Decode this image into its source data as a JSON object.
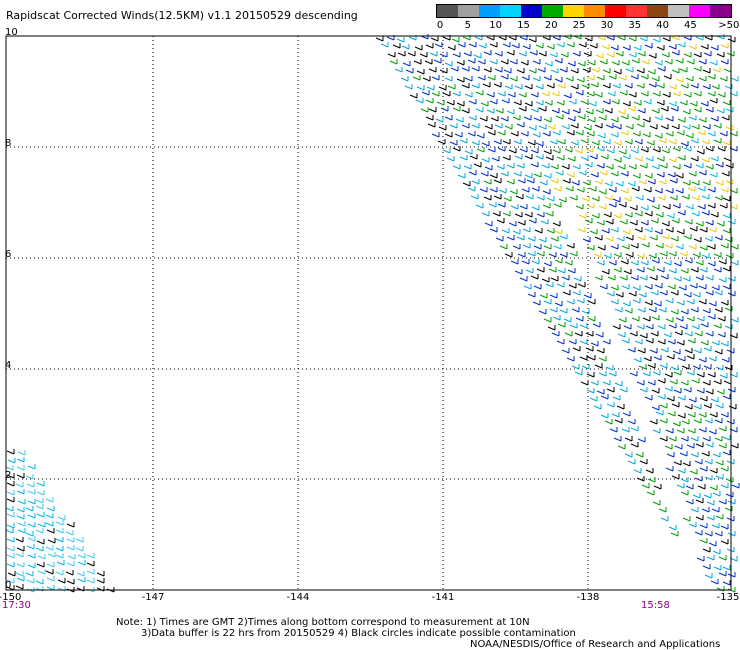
{
  "title": "Rapidscat Corrected Winds(12.5KM) v1.1 20150529 descending",
  "legend": {
    "labels": [
      "0",
      "5",
      "10",
      "15",
      "20",
      "25",
      "30",
      "35",
      "40",
      "45",
      ">50 knots"
    ],
    "colors": [
      "#555555",
      "#a0a0a0",
      "#00a0ff",
      "#00d4ff",
      "#0000cc",
      "#00aa00",
      "#ffd700",
      "#ff8c00",
      "#ff0000",
      "#ff3333",
      "#8b4513",
      "#c0c0c0",
      "#ff00ff",
      "#8b008b"
    ]
  },
  "axes": {
    "longitudes": [
      "-150",
      "-147",
      "-144",
      "-141",
      "-138",
      "-135"
    ],
    "latitudes": [
      "10",
      "8",
      "6",
      "4",
      "2",
      "0"
    ]
  },
  "times": {
    "left": "17:30",
    "right": "15:58"
  },
  "notes": {
    "line1": "Note: 1) Times are GMT 2)Times along bottom correspond to measurement at 10N",
    "line2": "3)Data buffer is 22 hrs from 20150529 4) Black circles indicate possible contamination",
    "line3": "NOAA/NESDIS/Office of Research and Applications"
  }
}
